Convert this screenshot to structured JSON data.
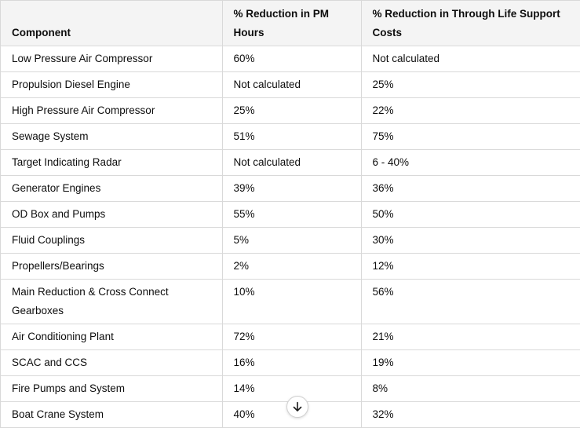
{
  "table": {
    "headers": [
      "Component",
      "% Reduction in PM Hours",
      "% Reduction in Through Life Support Costs"
    ],
    "rows": [
      [
        "Low Pressure Air Compressor",
        "60%",
        "Not calculated"
      ],
      [
        "Propulsion Diesel Engine",
        "Not calculated",
        "25%"
      ],
      [
        "High Pressure Air Compressor",
        "25%",
        "22%"
      ],
      [
        "Sewage System",
        "51%",
        "75%"
      ],
      [
        "Target Indicating Radar",
        "Not calculated",
        "6 - 40%"
      ],
      [
        "Generator Engines",
        "39%",
        "36%"
      ],
      [
        "OD Box and Pumps",
        "55%",
        "50%"
      ],
      [
        "Fluid Couplings",
        "5%",
        "30%"
      ],
      [
        "Propellers/Bearings",
        "2%",
        "12%"
      ],
      [
        "Main Reduction & Cross Connect Gearboxes",
        "10%",
        "56%"
      ],
      [
        "Air Conditioning Plant",
        "72%",
        "21%"
      ],
      [
        "SCAC and CCS",
        "16%",
        "19%"
      ],
      [
        "Fire Pumps and System",
        "14%",
        "8%"
      ],
      [
        "Boat Crane System",
        "40%",
        "32%"
      ]
    ]
  },
  "scroll_button": {
    "icon": "arrow-down-icon"
  }
}
